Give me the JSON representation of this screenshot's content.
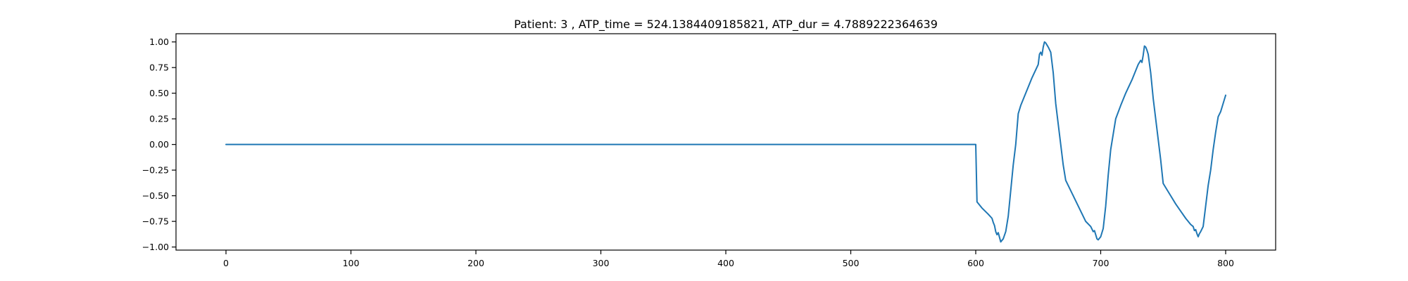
{
  "chart_data": {
    "type": "line",
    "title": "Patient: 3 , ATP_time = 524.1384409185821, ATP_dur = 4.7889222364639",
    "xlabel": "",
    "ylabel": "",
    "xlim": [
      -40,
      840
    ],
    "ylim": [
      -1.03,
      1.08
    ],
    "grid": false,
    "line_color": "#1f77b4",
    "x_ticks": [
      0,
      100,
      200,
      300,
      400,
      500,
      600,
      700,
      800
    ],
    "x_tick_labels": [
      "0",
      "100",
      "200",
      "300",
      "400",
      "500",
      "600",
      "700",
      "800"
    ],
    "y_ticks": [
      1.0,
      0.75,
      0.5,
      0.25,
      0.0,
      -0.25,
      -0.5,
      -0.75,
      -1.0
    ],
    "y_tick_labels": [
      "1.00",
      "0.75",
      "0.50",
      "0.25",
      "0.00",
      "−0.25",
      "−0.50",
      "−0.75",
      "−1.00"
    ],
    "series": [
      {
        "x": [
          0,
          100,
          200,
          300,
          400,
          500,
          599,
          600,
          601,
          605,
          610,
          613,
          614,
          615,
          616,
          617,
          618,
          620,
          622,
          624,
          626,
          628,
          630,
          632,
          634,
          636,
          640,
          645,
          650,
          651,
          652,
          653,
          654,
          655,
          656,
          657,
          658,
          660,
          662,
          664,
          666,
          668,
          670,
          672,
          676,
          680,
          684,
          688,
          692,
          694,
          695,
          696,
          697,
          698,
          700,
          702,
          704,
          706,
          708,
          710,
          712,
          716,
          720,
          725,
          730,
          732,
          733,
          734,
          735,
          736,
          737,
          738,
          740,
          742,
          744,
          746,
          748,
          750,
          752,
          756,
          760,
          764,
          768,
          772,
          774,
          775,
          776,
          777,
          778,
          779,
          780,
          782,
          784,
          786,
          788,
          790,
          792,
          794,
          796,
          798,
          800
        ],
        "y": [
          0,
          0,
          0,
          0,
          0,
          0,
          0,
          0,
          -0.56,
          -0.62,
          -0.68,
          -0.72,
          -0.76,
          -0.79,
          -0.85,
          -0.88,
          -0.86,
          -0.95,
          -0.92,
          -0.85,
          -0.7,
          -0.45,
          -0.2,
          0.0,
          0.3,
          0.38,
          0.5,
          0.65,
          0.78,
          0.88,
          0.9,
          0.87,
          0.95,
          1.0,
          0.99,
          0.97,
          0.95,
          0.9,
          0.7,
          0.4,
          0.2,
          0.0,
          -0.2,
          -0.35,
          -0.45,
          -0.55,
          -0.65,
          -0.75,
          -0.8,
          -0.85,
          -0.84,
          -0.88,
          -0.92,
          -0.93,
          -0.9,
          -0.82,
          -0.6,
          -0.3,
          -0.05,
          0.1,
          0.25,
          0.38,
          0.5,
          0.63,
          0.78,
          0.82,
          0.8,
          0.87,
          0.96,
          0.95,
          0.92,
          0.88,
          0.7,
          0.45,
          0.25,
          0.05,
          -0.15,
          -0.38,
          -0.42,
          -0.5,
          -0.58,
          -0.65,
          -0.72,
          -0.78,
          -0.8,
          -0.84,
          -0.83,
          -0.87,
          -0.9,
          -0.87,
          -0.85,
          -0.8,
          -0.6,
          -0.4,
          -0.25,
          -0.05,
          0.12,
          0.27,
          0.32,
          0.4,
          0.48
        ]
      }
    ]
  }
}
